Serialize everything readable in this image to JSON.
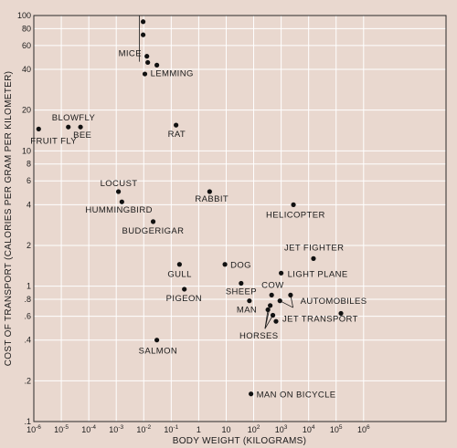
{
  "chart_data": {
    "type": "scatter",
    "xlabel": "BODY WEIGHT (KILOGRAMS)",
    "ylabel": "COST OF TRANSPORT (CALORIES PER GRAM PER KILOMETER)",
    "x_scale": "log",
    "y_scale": "log",
    "xlim": [
      1e-06,
      1000000000.0
    ],
    "ylim": [
      0.1,
      100
    ],
    "grid": true,
    "x_ticks": [
      {
        "value": 1e-06,
        "base": "10",
        "exp": "-6"
      },
      {
        "value": 1e-05,
        "base": "10",
        "exp": "-5"
      },
      {
        "value": 0.0001,
        "base": "10",
        "exp": "-4"
      },
      {
        "value": 0.001,
        "base": "10",
        "exp": "-3"
      },
      {
        "value": 0.01,
        "base": "10",
        "exp": "-2"
      },
      {
        "value": 0.1,
        "base": "10",
        "exp": "-1"
      },
      {
        "value": 1,
        "base": "1",
        "exp": ""
      },
      {
        "value": 10,
        "base": "10",
        "exp": ""
      },
      {
        "value": 100,
        "base": "10",
        "exp": "2"
      },
      {
        "value": 1000,
        "base": "10",
        "exp": "3"
      },
      {
        "value": 10000.0,
        "base": "10",
        "exp": "4"
      },
      {
        "value": 100000.0,
        "base": "10",
        "exp": "5"
      },
      {
        "value": 1000000.0,
        "base": "10",
        "exp": "6"
      }
    ],
    "y_ticks": [
      {
        "value": 0.1,
        "label": ".1"
      },
      {
        "value": 0.2,
        "label": ".2"
      },
      {
        "value": 0.4,
        "label": ".4"
      },
      {
        "value": 0.6,
        "label": ".6"
      },
      {
        "value": 0.8,
        "label": ".8"
      },
      {
        "value": 1,
        "label": "1"
      },
      {
        "value": 2,
        "label": "2"
      },
      {
        "value": 4,
        "label": "4"
      },
      {
        "value": 6,
        "label": "6"
      },
      {
        "value": 8,
        "label": "8"
      },
      {
        "value": 10,
        "label": "10"
      },
      {
        "value": 20,
        "label": "20"
      },
      {
        "value": 40,
        "label": "40"
      },
      {
        "value": 60,
        "label": "60"
      },
      {
        "value": 80,
        "label": "80"
      },
      {
        "value": 100,
        "label": "100"
      }
    ],
    "points": [
      {
        "label": "FRUIT FLY",
        "x": 1.5e-06,
        "y": 14.5
      },
      {
        "label": "BLOWFLY",
        "x": 1.8e-05,
        "y": 15
      },
      {
        "label": "BEE",
        "x": 5e-05,
        "y": 15
      },
      {
        "label": "",
        "x": 0.0095,
        "y": 90
      },
      {
        "label": "",
        "x": 0.0095,
        "y": 72
      },
      {
        "label": "",
        "x": 0.013,
        "y": 50
      },
      {
        "label": "",
        "x": 0.014,
        "y": 45
      },
      {
        "label": "",
        "x": 0.011,
        "y": 37
      },
      {
        "label": "LEMMING",
        "x": 0.03,
        "y": 43
      },
      {
        "label": "RAT",
        "x": 0.15,
        "y": 15.5
      },
      {
        "label": "LOCUST",
        "x": 0.0012,
        "y": 5
      },
      {
        "label": "HUMMINGBIRD",
        "x": 0.0016,
        "y": 4.2
      },
      {
        "label": "BUDGERIGAR",
        "x": 0.022,
        "y": 3
      },
      {
        "label": "RABBIT",
        "x": 2.5,
        "y": 5
      },
      {
        "label": "HELICOPTER",
        "x": 2800,
        "y": 4
      },
      {
        "label": "GULL",
        "x": 0.2,
        "y": 1.45
      },
      {
        "label": "PIGEON",
        "x": 0.3,
        "y": 0.95
      },
      {
        "label": "SALMON",
        "x": 0.03,
        "y": 0.4
      },
      {
        "label": "DOG",
        "x": 9,
        "y": 1.45
      },
      {
        "label": "SHEEP",
        "x": 35,
        "y": 1.05
      },
      {
        "label": "MAN",
        "x": 70,
        "y": 0.78
      },
      {
        "label": "MAN ON BICYCLE",
        "x": 80,
        "y": 0.16
      },
      {
        "label": "COW",
        "x": 450,
        "y": 0.86
      },
      {
        "label": "",
        "x": 330,
        "y": 0.67
      },
      {
        "label": "",
        "x": 400,
        "y": 0.72
      },
      {
        "label": "",
        "x": 500,
        "y": 0.61
      },
      {
        "label": "HORSES",
        "x": 650,
        "y": 0.55
      },
      {
        "label": "",
        "x": 900,
        "y": 0.78
      },
      {
        "label": "",
        "x": 2200,
        "y": 0.86
      },
      {
        "label": "LIGHT PLANE",
        "x": 1000,
        "y": 1.25
      },
      {
        "label": "JET FIGHTER",
        "x": 15000,
        "y": 1.6
      },
      {
        "label": "JET TRANSPORT",
        "x": 150000,
        "y": 0.63
      }
    ],
    "text_labels": [
      {
        "text": "MICE",
        "x": 0.0012,
        "y": 50
      },
      {
        "text": "AUTOMOBILES",
        "x": 5000,
        "y": 0.74
      }
    ]
  }
}
